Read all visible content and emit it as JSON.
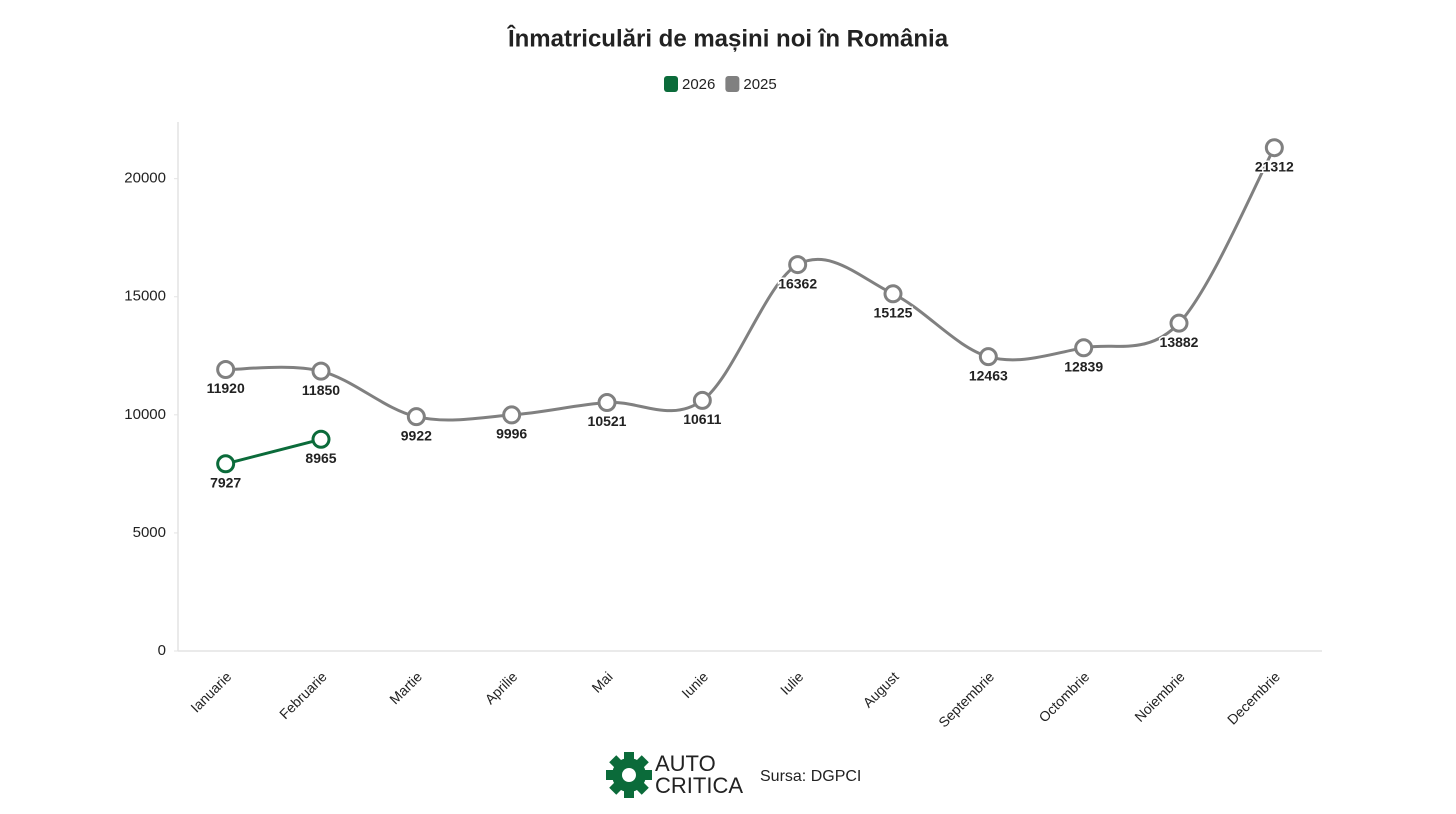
{
  "chart_data": {
    "type": "line",
    "title": "Înmatriculări de mașini noi în România",
    "categories": [
      "Ianuarie",
      "Februarie",
      "Martie",
      "Aprilie",
      "Mai",
      "Iunie",
      "Iulie",
      "August",
      "Septembrie",
      "Octombrie",
      "Noiembrie",
      "Decembrie"
    ],
    "series": [
      {
        "name": "2026",
        "color": "#0b6b3a",
        "values": [
          7927,
          8965,
          null,
          null,
          null,
          null,
          null,
          null,
          null,
          null,
          null,
          null
        ]
      },
      {
        "name": "2025",
        "color": "#808080",
        "values": [
          11920,
          11850,
          9922,
          9996,
          10521,
          10611,
          16362,
          15125,
          12463,
          12839,
          13882,
          21312
        ]
      }
    ],
    "ylim": [
      0,
      22400
    ],
    "yticks": [
      0,
      5000,
      10000,
      15000,
      20000
    ],
    "grid": false,
    "legend": "top"
  },
  "footer": {
    "logo_top": "AUTO",
    "logo_bottom": "CRITICA",
    "source": "Sursa: DGPCI"
  }
}
